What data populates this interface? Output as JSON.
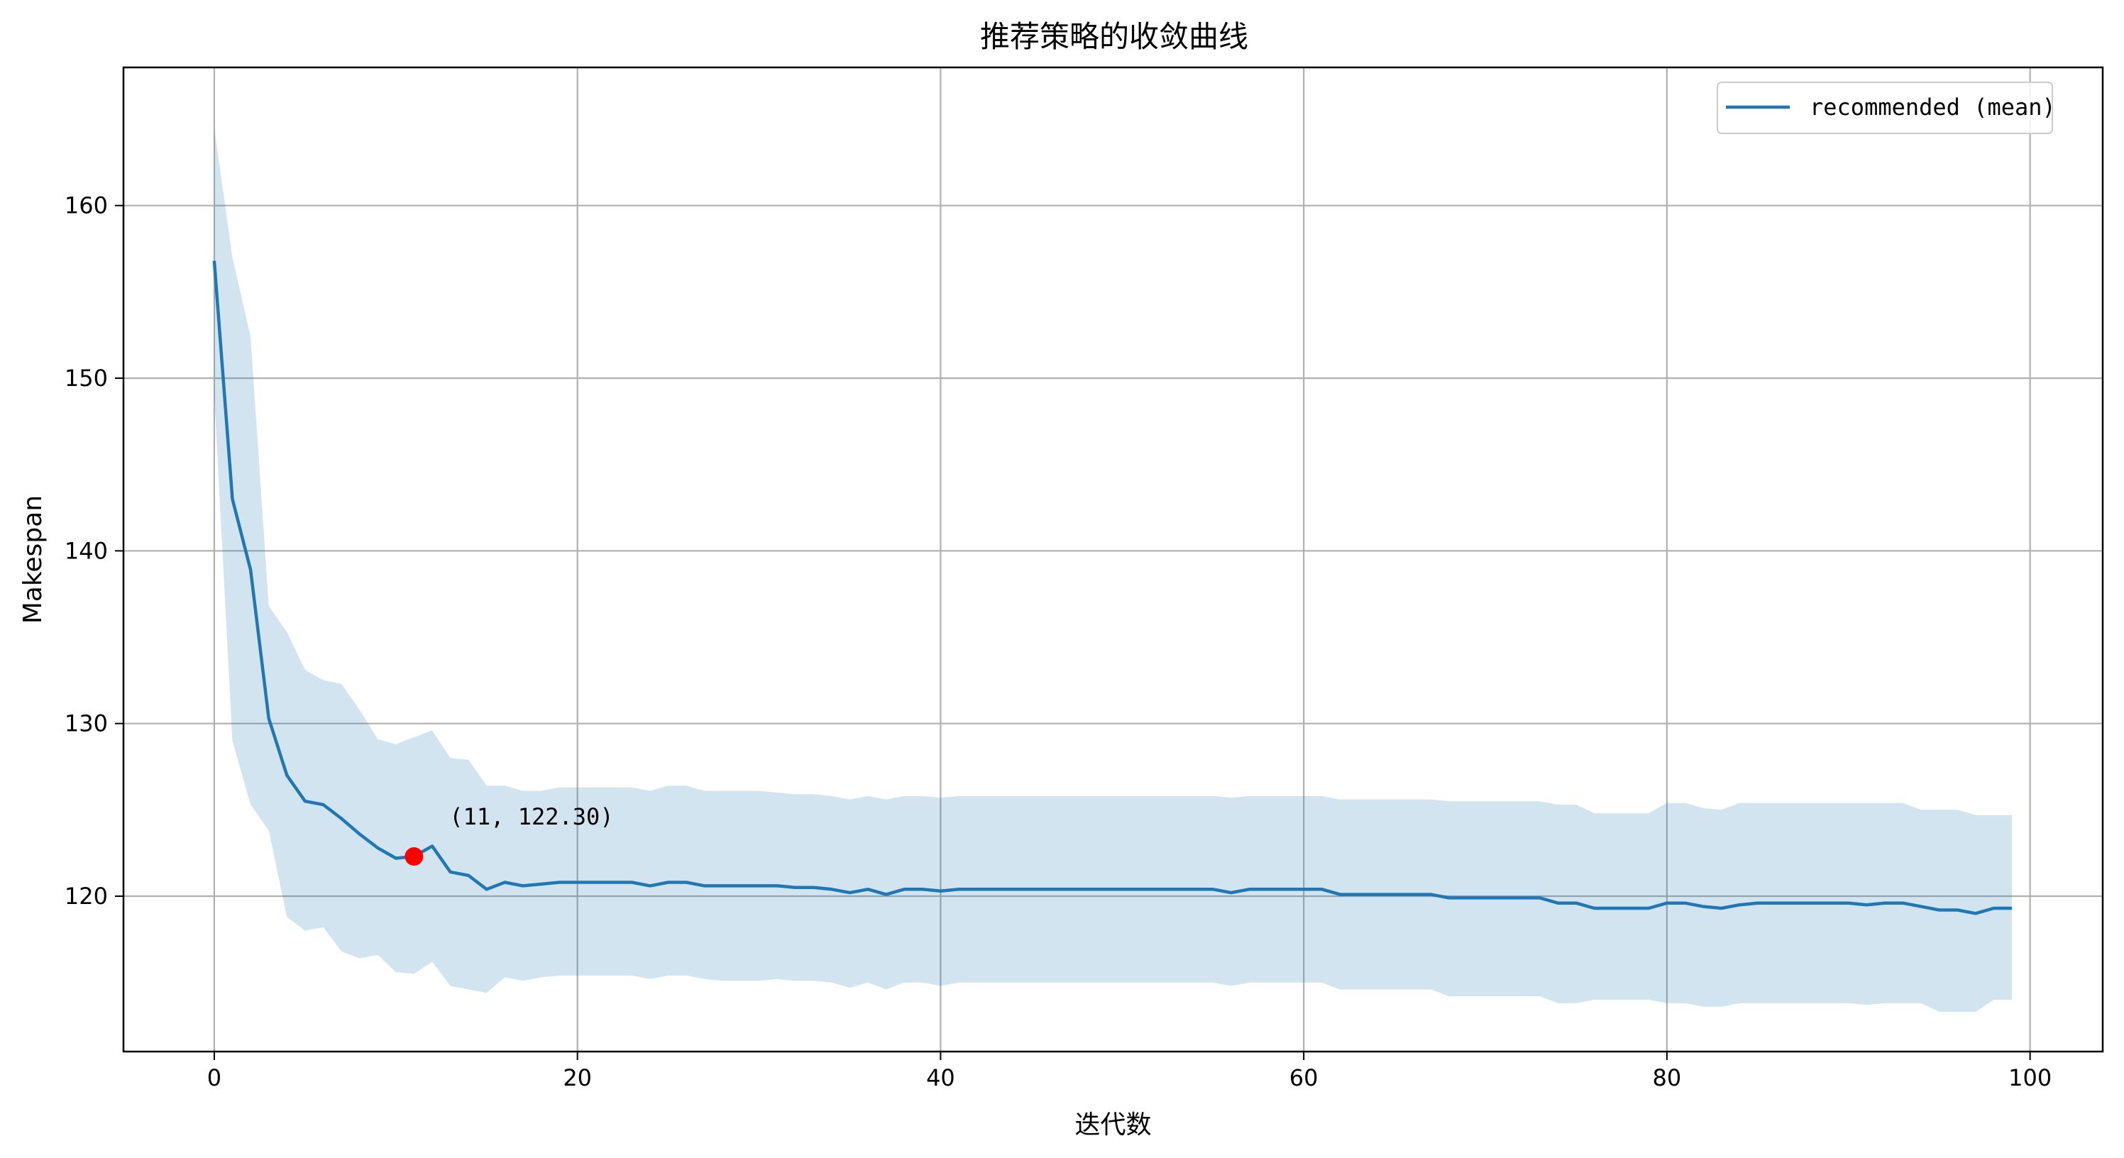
{
  "chart_data": {
    "type": "line",
    "title": "推荐策略的收敛曲线",
    "xlabel": "迭代数",
    "ylabel": "Makespan",
    "xlim": [
      -5,
      104
    ],
    "ylim": [
      111,
      168
    ],
    "x_ticks": [
      0,
      20,
      40,
      60,
      80,
      100
    ],
    "y_ticks": [
      120,
      130,
      140,
      150,
      160
    ],
    "grid": true,
    "legend_position": "top-right",
    "colors": {
      "line": "#1f77b4",
      "band": "#1f77b4",
      "marker": "#ff0000"
    },
    "series": [
      {
        "name": "recommended (mean)",
        "x": [
          0,
          1,
          2,
          3,
          4,
          5,
          6,
          7,
          8,
          9,
          10,
          11,
          12,
          13,
          14,
          15,
          16,
          17,
          18,
          19,
          20,
          21,
          22,
          23,
          24,
          25,
          26,
          27,
          28,
          29,
          30,
          31,
          32,
          33,
          34,
          35,
          36,
          37,
          38,
          39,
          40,
          41,
          42,
          43,
          44,
          45,
          46,
          47,
          48,
          49,
          50,
          51,
          52,
          53,
          54,
          55,
          56,
          57,
          58,
          59,
          60,
          61,
          62,
          63,
          64,
          65,
          66,
          67,
          68,
          69,
          70,
          71,
          72,
          73,
          74,
          75,
          76,
          77,
          78,
          79,
          80,
          81,
          82,
          83,
          84,
          85,
          86,
          87,
          88,
          89,
          90,
          91,
          92,
          93,
          94,
          95,
          96,
          97,
          98,
          99
        ],
        "mean": [
          156.8,
          143.0,
          138.9,
          130.3,
          127.0,
          125.5,
          125.3,
          124.5,
          123.6,
          122.8,
          122.2,
          122.3,
          122.9,
          121.4,
          121.2,
          120.4,
          120.8,
          120.6,
          120.7,
          120.8,
          120.8,
          120.8,
          120.8,
          120.8,
          120.6,
          120.8,
          120.8,
          120.6,
          120.6,
          120.6,
          120.6,
          120.6,
          120.5,
          120.5,
          120.4,
          120.2,
          120.4,
          120.1,
          120.4,
          120.4,
          120.3,
          120.4,
          120.4,
          120.4,
          120.4,
          120.4,
          120.4,
          120.4,
          120.4,
          120.4,
          120.4,
          120.4,
          120.4,
          120.4,
          120.4,
          120.4,
          120.2,
          120.4,
          120.4,
          120.4,
          120.4,
          120.4,
          120.1,
          120.1,
          120.1,
          120.1,
          120.1,
          120.1,
          119.9,
          119.9,
          119.9,
          119.9,
          119.9,
          119.9,
          119.6,
          119.6,
          119.3,
          119.3,
          119.3,
          119.3,
          119.6,
          119.6,
          119.4,
          119.3,
          119.5,
          119.6,
          119.6,
          119.6,
          119.6,
          119.6,
          119.6,
          119.5,
          119.6,
          119.6,
          119.4,
          119.2,
          119.2,
          119.0,
          119.3,
          119.3
        ],
        "upper": [
          164.5,
          157.0,
          152.4,
          136.8,
          135.3,
          133.1,
          132.5,
          132.3,
          130.8,
          129.1,
          128.8,
          129.2,
          129.6,
          128.0,
          127.9,
          126.4,
          126.4,
          126.1,
          126.1,
          126.3,
          126.3,
          126.3,
          126.3,
          126.3,
          126.1,
          126.4,
          126.4,
          126.1,
          126.1,
          126.1,
          126.1,
          126.0,
          125.9,
          125.9,
          125.8,
          125.6,
          125.8,
          125.6,
          125.8,
          125.8,
          125.7,
          125.8,
          125.8,
          125.8,
          125.8,
          125.8,
          125.8,
          125.8,
          125.8,
          125.8,
          125.8,
          125.8,
          125.8,
          125.8,
          125.8,
          125.8,
          125.7,
          125.8,
          125.8,
          125.8,
          125.8,
          125.8,
          125.6,
          125.6,
          125.6,
          125.6,
          125.6,
          125.6,
          125.5,
          125.5,
          125.5,
          125.5,
          125.5,
          125.5,
          125.3,
          125.3,
          124.8,
          124.8,
          124.8,
          124.8,
          125.4,
          125.4,
          125.1,
          125.0,
          125.4,
          125.4,
          125.4,
          125.4,
          125.4,
          125.4,
          125.4,
          125.4,
          125.4,
          125.4,
          125.0,
          125.0,
          125.0,
          124.7,
          124.7,
          124.7
        ],
        "lower": [
          149.0,
          129.0,
          125.3,
          123.8,
          118.8,
          118.0,
          118.2,
          116.8,
          116.4,
          116.6,
          115.6,
          115.5,
          116.2,
          114.8,
          114.6,
          114.4,
          115.3,
          115.1,
          115.3,
          115.4,
          115.4,
          115.4,
          115.4,
          115.4,
          115.2,
          115.4,
          115.4,
          115.2,
          115.1,
          115.1,
          115.1,
          115.2,
          115.1,
          115.1,
          115.0,
          114.7,
          115.0,
          114.6,
          115.0,
          115.0,
          114.8,
          115.0,
          115.0,
          115.0,
          115.0,
          115.0,
          115.0,
          115.0,
          115.0,
          115.0,
          115.0,
          115.0,
          115.0,
          115.0,
          115.0,
          115.0,
          114.8,
          115.0,
          115.0,
          115.0,
          115.0,
          115.0,
          114.6,
          114.6,
          114.6,
          114.6,
          114.6,
          114.6,
          114.2,
          114.2,
          114.2,
          114.2,
          114.2,
          114.2,
          113.8,
          113.8,
          114.0,
          114.0,
          114.0,
          114.0,
          113.8,
          113.8,
          113.6,
          113.6,
          113.8,
          113.8,
          113.8,
          113.8,
          113.8,
          113.8,
          113.8,
          113.7,
          113.8,
          113.8,
          113.8,
          113.3,
          113.3,
          113.3,
          114.0,
          114.0
        ]
      }
    ],
    "annotation": {
      "x": 11,
      "y": 122.3,
      "text": "(11, 122.30)"
    }
  }
}
